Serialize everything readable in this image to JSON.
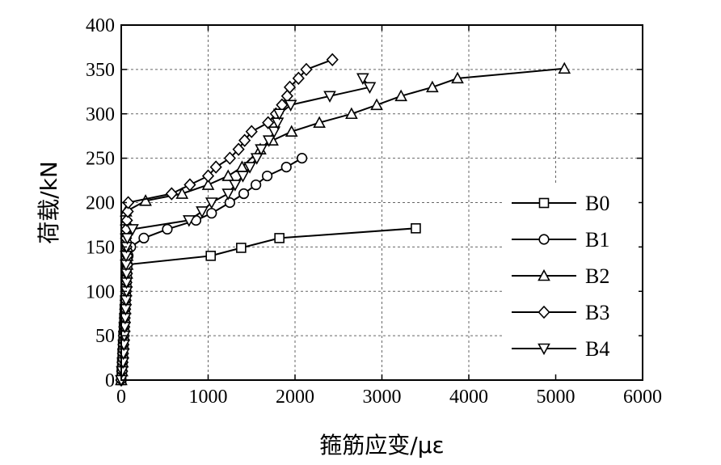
{
  "chart_data": {
    "type": "line",
    "xlabel": "箍筋应变/με",
    "ylabel": "荷载/kN",
    "xlim": [
      0,
      6000
    ],
    "ylim": [
      0,
      400
    ],
    "x_ticks": [
      "0",
      "1000",
      "2000",
      "3000",
      "4000",
      "5000",
      "6000"
    ],
    "y_ticks": [
      "0",
      "50",
      "100",
      "150",
      "200",
      "250",
      "300",
      "350",
      "400"
    ],
    "grid": true,
    "legend_position": "right",
    "series": [
      {
        "name": "B0",
        "marker": "square",
        "points": [
          [
            0,
            0
          ],
          [
            5,
            10
          ],
          [
            10,
            20
          ],
          [
            15,
            30
          ],
          [
            20,
            40
          ],
          [
            25,
            50
          ],
          [
            30,
            60
          ],
          [
            35,
            70
          ],
          [
            40,
            80
          ],
          [
            45,
            90
          ],
          [
            50,
            100
          ],
          [
            55,
            110
          ],
          [
            60,
            120
          ],
          [
            65,
            130
          ],
          [
            1030,
            140
          ],
          [
            1380,
            149
          ],
          [
            1820,
            160
          ],
          [
            3390,
            171
          ]
        ]
      },
      {
        "name": "B1",
        "marker": "circle",
        "points": [
          [
            0,
            0
          ],
          [
            10,
            10
          ],
          [
            15,
            20
          ],
          [
            20,
            30
          ],
          [
            25,
            40
          ],
          [
            30,
            50
          ],
          [
            35,
            60
          ],
          [
            40,
            70
          ],
          [
            45,
            80
          ],
          [
            50,
            90
          ],
          [
            55,
            100
          ],
          [
            60,
            110
          ],
          [
            65,
            120
          ],
          [
            70,
            130
          ],
          [
            80,
            140
          ],
          [
            110,
            150
          ],
          [
            260,
            160
          ],
          [
            530,
            170
          ],
          [
            860,
            180
          ],
          [
            1040,
            188
          ],
          [
            1250,
            200
          ],
          [
            1410,
            210
          ],
          [
            1550,
            220
          ],
          [
            1680,
            230
          ],
          [
            1900,
            240
          ],
          [
            2080,
            250
          ]
        ]
      },
      {
        "name": "B2",
        "marker": "triangle-up",
        "points": [
          [
            0,
            0
          ],
          [
            10,
            10
          ],
          [
            15,
            20
          ],
          [
            20,
            30
          ],
          [
            25,
            40
          ],
          [
            30,
            50
          ],
          [
            35,
            60
          ],
          [
            40,
            70
          ],
          [
            45,
            80
          ],
          [
            50,
            90
          ],
          [
            55,
            100
          ],
          [
            60,
            110
          ],
          [
            65,
            120
          ],
          [
            70,
            130
          ],
          [
            70,
            140
          ],
          [
            70,
            150
          ],
          [
            60,
            160
          ],
          [
            55,
            170
          ],
          [
            55,
            180
          ],
          [
            55,
            190
          ],
          [
            280,
            202
          ],
          [
            700,
            210
          ],
          [
            1000,
            220
          ],
          [
            1230,
            230
          ],
          [
            1390,
            240
          ],
          [
            1600,
            260
          ],
          [
            1740,
            270
          ],
          [
            1960,
            280
          ],
          [
            2280,
            290
          ],
          [
            2650,
            300
          ],
          [
            2940,
            310
          ],
          [
            3220,
            320
          ],
          [
            3580,
            330
          ],
          [
            3870,
            340
          ],
          [
            5100,
            351
          ]
        ]
      },
      {
        "name": "B3",
        "marker": "diamond",
        "points": [
          [
            0,
            0
          ],
          [
            10,
            10
          ],
          [
            15,
            20
          ],
          [
            20,
            30
          ],
          [
            25,
            40
          ],
          [
            30,
            50
          ],
          [
            35,
            60
          ],
          [
            40,
            70
          ],
          [
            45,
            80
          ],
          [
            50,
            90
          ],
          [
            55,
            100
          ],
          [
            60,
            110
          ],
          [
            65,
            120
          ],
          [
            70,
            130
          ],
          [
            70,
            140
          ],
          [
            60,
            150
          ],
          [
            55,
            160
          ],
          [
            60,
            170
          ],
          [
            65,
            180
          ],
          [
            75,
            190
          ],
          [
            80,
            200
          ],
          [
            580,
            210
          ],
          [
            790,
            220
          ],
          [
            1000,
            230
          ],
          [
            1090,
            240
          ],
          [
            1250,
            250
          ],
          [
            1350,
            260
          ],
          [
            1420,
            270
          ],
          [
            1500,
            280
          ],
          [
            1690,
            290
          ],
          [
            1780,
            300
          ],
          [
            1850,
            310
          ],
          [
            1910,
            320
          ],
          [
            1940,
            330
          ],
          [
            2040,
            340
          ],
          [
            2130,
            350
          ],
          [
            2430,
            361
          ]
        ]
      },
      {
        "name": "B4",
        "marker": "triangle-down",
        "points": [
          [
            0,
            0
          ],
          [
            10,
            10
          ],
          [
            20,
            20
          ],
          [
            25,
            30
          ],
          [
            30,
            40
          ],
          [
            35,
            50
          ],
          [
            40,
            60
          ],
          [
            45,
            70
          ],
          [
            50,
            80
          ],
          [
            55,
            90
          ],
          [
            60,
            100
          ],
          [
            60,
            110
          ],
          [
            60,
            120
          ],
          [
            55,
            130
          ],
          [
            55,
            140
          ],
          [
            60,
            150
          ],
          [
            70,
            160
          ],
          [
            130,
            170
          ],
          [
            780,
            180
          ],
          [
            930,
            190
          ],
          [
            1040,
            200
          ],
          [
            1230,
            210
          ],
          [
            1310,
            220
          ],
          [
            1400,
            230
          ],
          [
            1480,
            240
          ],
          [
            1560,
            250
          ],
          [
            1610,
            260
          ],
          [
            1700,
            270
          ],
          [
            1760,
            280
          ],
          [
            1800,
            290
          ],
          [
            1820,
            300
          ],
          [
            1950,
            310
          ],
          [
            2400,
            320
          ],
          [
            2860,
            330
          ],
          [
            2780,
            340
          ]
        ]
      }
    ]
  }
}
